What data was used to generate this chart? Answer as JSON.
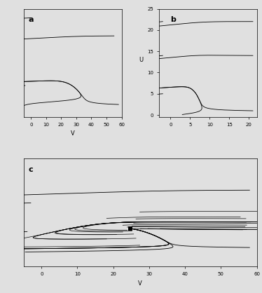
{
  "fig_width": 3.74,
  "fig_height": 4.18,
  "dpi": 100,
  "background_color": "#e0e0e0",
  "line_color": "#000000",
  "lw": 0.6,
  "marker_size": 3,
  "panels": {
    "a": {
      "label": "a",
      "xlabel": "V",
      "xlim": [
        -5,
        60
      ],
      "ylim": [
        -1,
        11
      ],
      "xticks": [
        0,
        10,
        20,
        30,
        40,
        50,
        60
      ]
    },
    "b": {
      "label": "b",
      "xlabel": "",
      "ylabel": "U",
      "xlim": [
        -3,
        22
      ],
      "ylim": [
        -0.5,
        25
      ],
      "xticks": [
        0,
        5,
        10,
        15,
        20
      ],
      "yticks": [
        0,
        5,
        10,
        15,
        20,
        25
      ]
    },
    "c": {
      "label": "c",
      "xlabel": "V",
      "xlim": [
        -5,
        60
      ],
      "ylim": [
        -2,
        15
      ],
      "xticks": [
        0,
        10,
        20,
        30,
        40,
        50,
        60
      ]
    }
  }
}
